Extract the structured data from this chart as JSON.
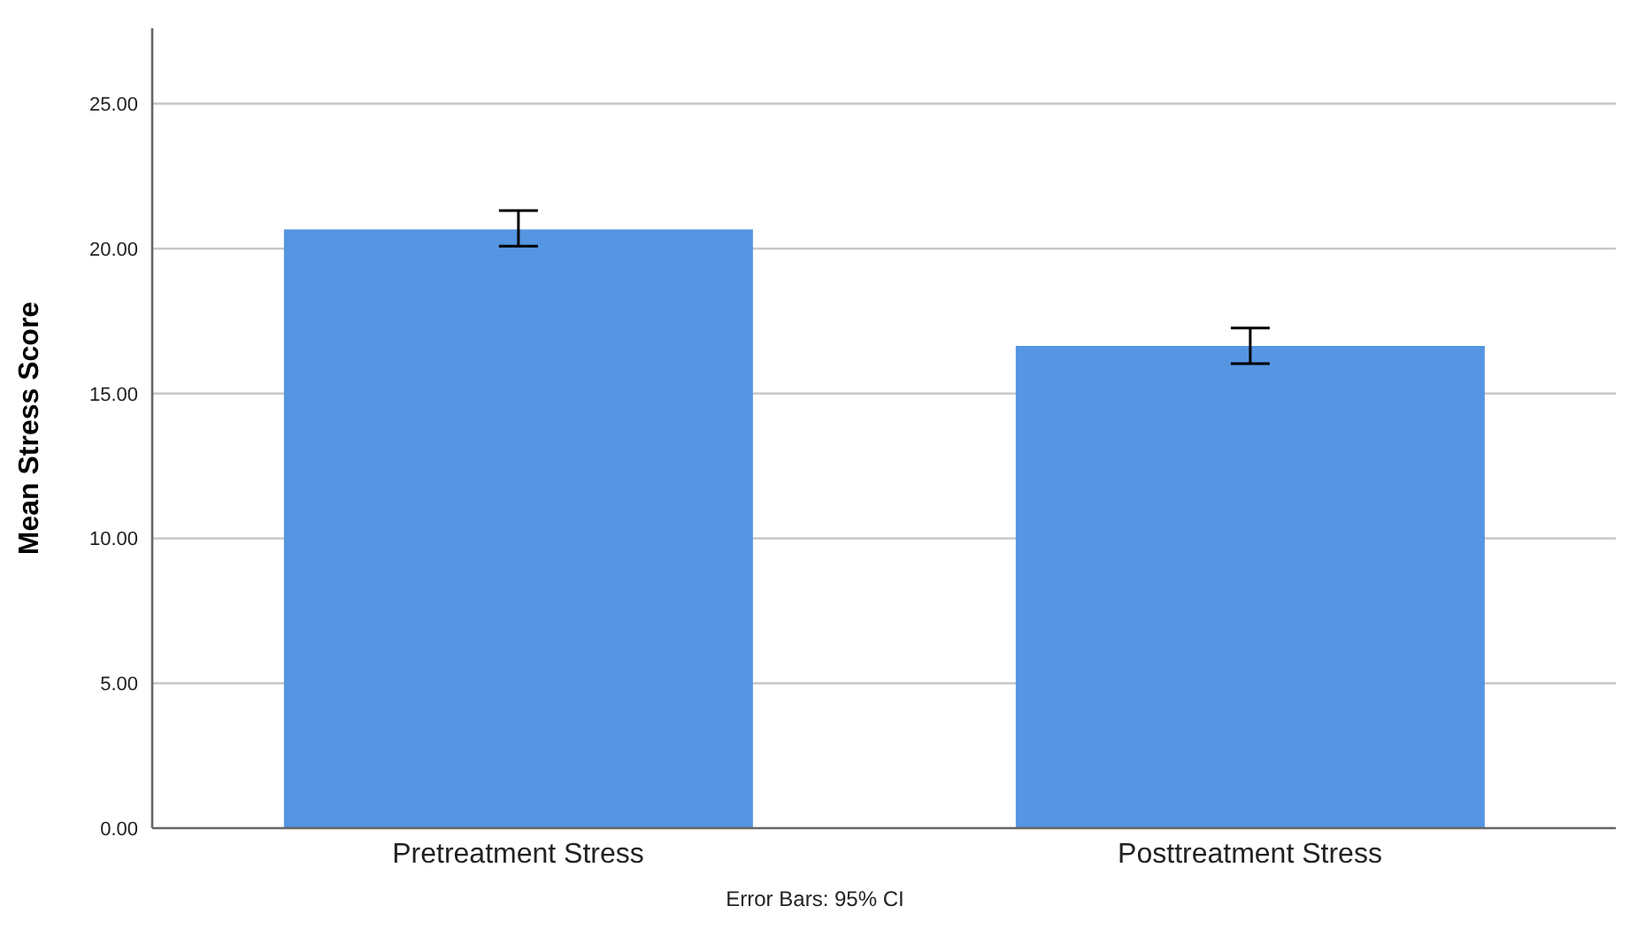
{
  "chart_data": {
    "type": "bar",
    "ylabel": "Mean Stress Score",
    "categories": [
      "Pretreatment Stress",
      "Posttreatment Stress"
    ],
    "values": [
      20.66,
      16.64
    ],
    "errors": [
      [
        20.08,
        21.31
      ],
      [
        16.03,
        17.26
      ]
    ],
    "color": "#5595e2",
    "ylim": [
      0,
      27.6
    ],
    "yticks": [
      {
        "value": 0,
        "label": "0.00"
      },
      {
        "value": 5,
        "label": "5.00"
      },
      {
        "value": 10,
        "label": "10.00"
      },
      {
        "value": 15,
        "label": "15.00"
      },
      {
        "value": 20,
        "label": "20.00"
      },
      {
        "value": 25,
        "label": "25.00"
      }
    ],
    "grid": "y",
    "annotations": [
      "Error Bars: 95% CI"
    ]
  }
}
